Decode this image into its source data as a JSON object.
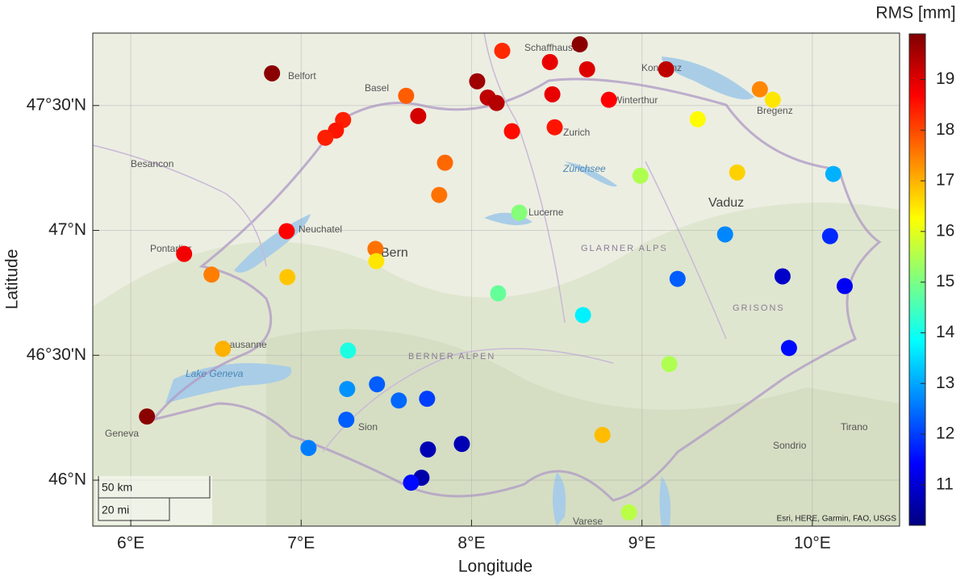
{
  "chart_data": {
    "type": "scatter",
    "xlabel": "Longitude",
    "ylabel": "Latitude",
    "colorbar_label": "RMS [mm]",
    "x": [
      6.829,
      8.635,
      8.18,
      8.46,
      8.678,
      9.142,
      8.033,
      7.616,
      8.095,
      8.147,
      8.474,
      8.806,
      9.692,
      9.768,
      7.687,
      7.246,
      7.204,
      7.142,
      8.237,
      8.488,
      9.327,
      7.844,
      7.81,
      8.991,
      9.559,
      10.123,
      8.28,
      6.915,
      6.313,
      7.436,
      7.441,
      6.474,
      6.919,
      9.488,
      10.104,
      9.209,
      9.825,
      10.19,
      8.156,
      8.654,
      6.54,
      7.275,
      9.863,
      9.161,
      7.27,
      7.445,
      7.573,
      7.739,
      7.265,
      6.095,
      7.943,
      7.744,
      7.043,
      8.768,
      7.706,
      7.645,
      8.924
    ],
    "y": [
      47.629,
      47.745,
      47.719,
      47.674,
      47.645,
      47.645,
      47.597,
      47.539,
      47.532,
      47.51,
      47.545,
      47.523,
      47.565,
      47.523,
      47.458,
      47.442,
      47.4,
      47.371,
      47.397,
      47.413,
      47.445,
      47.271,
      47.142,
      47.219,
      47.232,
      47.226,
      47.071,
      46.997,
      46.906,
      46.926,
      46.877,
      46.823,
      46.813,
      46.984,
      46.977,
      46.806,
      46.816,
      46.777,
      46.748,
      46.661,
      46.526,
      46.519,
      46.529,
      46.465,
      46.365,
      46.384,
      46.319,
      46.326,
      46.242,
      46.255,
      46.145,
      46.123,
      46.129,
      46.181,
      46.01,
      45.99,
      45.871
    ],
    "values": [
      19.8,
      19.8,
      18.3,
      18.9,
      19.0,
      19.3,
      19.6,
      17.8,
      19.3,
      19.4,
      18.9,
      18.7,
      17.4,
      16.5,
      19.1,
      18.4,
      18.5,
      18.4,
      18.6,
      18.5,
      16.3,
      17.7,
      17.6,
      15.5,
      16.7,
      13.1,
      15.1,
      18.7,
      18.8,
      17.6,
      16.5,
      17.5,
      16.8,
      12.7,
      11.8,
      12.3,
      10.9,
      11.3,
      14.8,
      13.7,
      17.0,
      14.1,
      11.5,
      15.5,
      12.8,
      12.3,
      12.4,
      12.0,
      12.3,
      19.8,
      10.7,
      10.7,
      12.6,
      16.9,
      10.6,
      11.5,
      15.6
    ],
    "colormap": "jet",
    "xlim": [
      5.777,
      10.512
    ],
    "ylim": [
      45.816,
      47.79
    ],
    "xticks": [
      {
        "value": 6,
        "label": "6°E"
      },
      {
        "value": 7,
        "label": "7°E"
      },
      {
        "value": 8,
        "label": "8°E"
      },
      {
        "value": 9,
        "label": "9°E"
      },
      {
        "value": 10,
        "label": "10°E"
      }
    ],
    "yticks": [
      {
        "value": 46,
        "label": "46°N"
      },
      {
        "value": 46.5,
        "label": "46°30'N"
      },
      {
        "value": 47,
        "label": "47°N"
      },
      {
        "value": 47.5,
        "label": "47°30'N"
      }
    ],
    "clim": [
      10.2,
      19.9
    ],
    "cticks": [
      11,
      12,
      13,
      14,
      15,
      16,
      17,
      18,
      19
    ],
    "grid": true,
    "scale_bar": [
      "50 km",
      "20 mi"
    ],
    "attribution": "Esri, HERE, Garmin, FAO, USGS",
    "basemap_labels": [
      "Belfort",
      "Basel",
      "Schaffhausen",
      "Konstanz",
      "Zurich",
      "Winterthur",
      "Bregenz",
      "Besancon",
      "Vaduz",
      "Neuchatel",
      "Pontarlier",
      "Bern",
      "Lucerne",
      "Lausanne",
      "Geneva",
      "Sion",
      "Sondrio",
      "Tirano",
      "Varese",
      "Lake Geneva",
      "Zürichsee",
      "BERNER ALPEN",
      "GRISONS",
      "GLARNER ALPS"
    ]
  }
}
